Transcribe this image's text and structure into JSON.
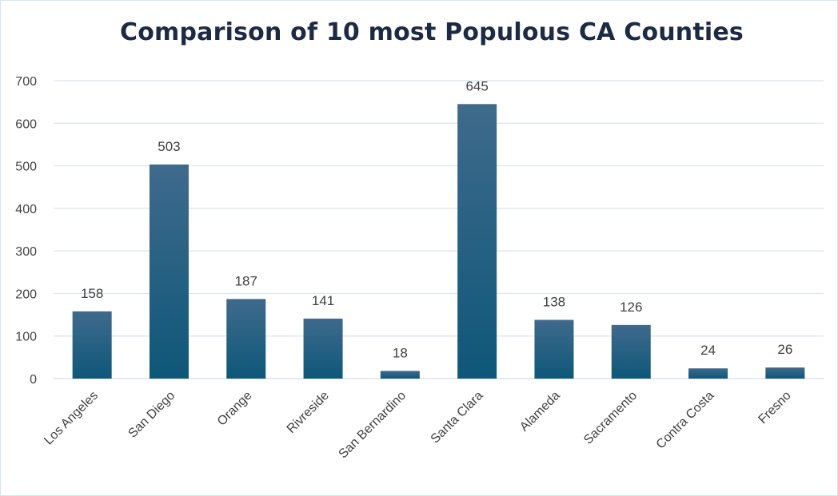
{
  "chart_data": {
    "type": "bar",
    "title": "Comparison of 10 most Populous CA Counties",
    "xlabel": "",
    "ylabel": "",
    "categories": [
      "Los Angeles",
      "San Diego",
      "Orange",
      "Rivreside",
      "San Bernardino",
      "Santa Clara",
      "Alameda",
      "Sacramento",
      "Contra Costa",
      "Fresno"
    ],
    "values": [
      158,
      503,
      187,
      141,
      18,
      645,
      138,
      126,
      24,
      26
    ],
    "ylim": [
      0,
      700
    ],
    "yticks": [
      0,
      100,
      200,
      300,
      400,
      500,
      600,
      700
    ],
    "grid": true,
    "data_labels": true,
    "colors": {
      "bar_top": "#3f6a8c",
      "bar_bottom": "#0e5778",
      "grid": "#d9e4ef",
      "title": "#1c2a43"
    }
  }
}
